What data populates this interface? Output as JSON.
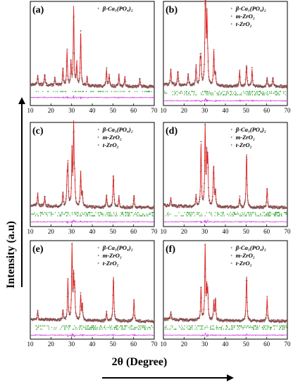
{
  "colors": {
    "observed": "#7a4a4a",
    "calculated": "#e02020",
    "bragg": "#2fa02f",
    "difference": "#d040e0",
    "frame": "#000000"
  },
  "figure": {
    "y_axis_title": "Intensity (a.u)",
    "x_axis_title": "2θ (Degree)"
  },
  "chart_data": [
    {
      "type": "line",
      "panel": "(a)",
      "xlim": [
        10,
        70
      ],
      "xticks": [
        10,
        20,
        30,
        40,
        50,
        60,
        70
      ],
      "legend": [
        "β-Ca₃(PO₄)₂"
      ],
      "series": [
        {
          "name": "β-Ca₃(PO₄)₂",
          "peaks": [
            [
              13.6,
              0.12
            ],
            [
              17.0,
              0.14
            ],
            [
              21.9,
              0.1
            ],
            [
              25.8,
              0.22
            ],
            [
              27.8,
              0.45
            ],
            [
              29.7,
              0.3
            ],
            [
              31.0,
              1.0
            ],
            [
              32.5,
              0.28
            ],
            [
              34.4,
              0.7
            ],
            [
              37.5,
              0.12
            ],
            [
              46.9,
              0.22
            ],
            [
              48.2,
              0.14
            ],
            [
              52.9,
              0.16
            ],
            [
              55.8,
              0.12
            ],
            [
              63.0,
              0.1
            ]
          ]
        }
      ]
    },
    {
      "type": "line",
      "panel": "(b)",
      "xlim": [
        10,
        70
      ],
      "xticks": [
        10,
        20,
        30,
        40,
        50,
        60,
        70
      ],
      "legend": [
        "β-Ca₃(PO₄)₂",
        "m-ZrO₂",
        "t-ZrO₂"
      ],
      "series": [
        {
          "name": "β-Ca₃(PO₄)₂",
          "peaks": [
            [
              13.6,
              0.2
            ],
            [
              17.0,
              0.18
            ],
            [
              22.0,
              0.15
            ],
            [
              25.8,
              0.25
            ],
            [
              27.8,
              0.3
            ],
            [
              30.4,
              1.0
            ],
            [
              31.1,
              0.8
            ],
            [
              34.4,
              0.45
            ],
            [
              46.9,
              0.2
            ],
            [
              52.9,
              0.22
            ],
            [
              63.0,
              0.12
            ]
          ]
        },
        {
          "name": "m-ZrO₂",
          "peaks": [
            [
              28.2,
              0.3
            ],
            [
              31.5,
              0.22
            ],
            [
              50.1,
              0.14
            ]
          ]
        },
        {
          "name": "t-ZrO₂",
          "peaks": [
            [
              30.2,
              0.5
            ],
            [
              35.2,
              0.16
            ],
            [
              50.3,
              0.18
            ],
            [
              60.2,
              0.12
            ]
          ]
        }
      ]
    },
    {
      "type": "line",
      "panel": "(c)",
      "xlim": [
        10,
        70
      ],
      "xticks": [
        10,
        20,
        30,
        40,
        50,
        60,
        70
      ],
      "legend": [
        "β-Ca₃(PO₄)₂",
        "m-ZrO₂",
        "t-ZrO₂"
      ],
      "series": [
        {
          "name": "β-Ca₃(PO₄)₂",
          "peaks": [
            [
              13.6,
              0.16
            ],
            [
              17.0,
              0.12
            ],
            [
              25.8,
              0.18
            ],
            [
              27.8,
              0.3
            ],
            [
              31.0,
              1.0
            ],
            [
              34.4,
              0.45
            ],
            [
              46.9,
              0.16
            ],
            [
              52.9,
              0.14
            ]
          ]
        },
        {
          "name": "m-ZrO₂",
          "peaks": [
            [
              28.2,
              0.5
            ],
            [
              31.5,
              0.3
            ],
            [
              50.1,
              0.18
            ]
          ]
        },
        {
          "name": "t-ZrO₂",
          "peaks": [
            [
              30.2,
              0.7
            ],
            [
              35.2,
              0.18
            ],
            [
              50.3,
              0.3
            ],
            [
              60.2,
              0.16
            ]
          ]
        }
      ]
    },
    {
      "type": "line",
      "panel": "(d)",
      "xlim": [
        10,
        70
      ],
      "xticks": [
        10,
        20,
        30,
        40,
        50,
        60,
        70
      ],
      "legend": [
        "β-Ca₃(PO₄)₂",
        "m-ZrO₂",
        "t-ZrO₂"
      ],
      "series": [
        {
          "name": "β-Ca₃(PO₄)₂",
          "peaks": [
            [
              13.6,
              0.1
            ],
            [
              25.8,
              0.14
            ],
            [
              31.0,
              0.6
            ],
            [
              34.4,
              0.35
            ],
            [
              46.9,
              0.12
            ]
          ]
        },
        {
          "name": "m-ZrO₂",
          "peaks": [
            [
              28.2,
              0.8
            ],
            [
              31.5,
              0.55
            ],
            [
              34.2,
              0.25
            ],
            [
              50.1,
              0.22
            ]
          ]
        },
        {
          "name": "t-ZrO₂",
          "peaks": [
            [
              30.2,
              1.0
            ],
            [
              35.2,
              0.2
            ],
            [
              50.3,
              0.55
            ],
            [
              60.2,
              0.25
            ]
          ]
        }
      ]
    },
    {
      "type": "line",
      "panel": "(e)",
      "xlim": [
        10,
        70
      ],
      "xticks": [
        10,
        20,
        30,
        40,
        50,
        60,
        70
      ],
      "legend": [
        "β-Ca₃(PO₄)₂",
        "m-ZrO₂",
        "t-ZrO₂"
      ],
      "series": [
        {
          "name": "β-Ca₃(PO₄)₂",
          "peaks": [
            [
              13.6,
              0.12
            ],
            [
              25.8,
              0.14
            ],
            [
              31.0,
              0.55
            ],
            [
              34.4,
              0.35
            ],
            [
              46.9,
              0.12
            ]
          ]
        },
        {
          "name": "m-ZrO₂",
          "peaks": [
            [
              28.2,
              0.55
            ],
            [
              31.5,
              0.4
            ],
            [
              50.1,
              0.2
            ]
          ]
        },
        {
          "name": "t-ZrO₂",
          "peaks": [
            [
              30.2,
              1.0
            ],
            [
              35.2,
              0.22
            ],
            [
              50.3,
              0.48
            ],
            [
              60.2,
              0.3
            ]
          ]
        }
      ]
    },
    {
      "type": "line",
      "panel": "(f)",
      "xlim": [
        10,
        70
      ],
      "xticks": [
        10,
        20,
        30,
        40,
        50,
        60,
        70
      ],
      "legend": [
        "β-Ca₃(PO₄)₂",
        "m-ZrO₂",
        "t-ZrO₂"
      ],
      "series": [
        {
          "name": "β-Ca₃(PO₄)₂",
          "peaks": [
            [
              13.6,
              0.1
            ],
            [
              31.0,
              0.4
            ],
            [
              34.4,
              0.25
            ]
          ]
        },
        {
          "name": "m-ZrO₂",
          "peaks": [
            [
              28.2,
              0.45
            ],
            [
              31.5,
              0.35
            ],
            [
              50.1,
              0.18
            ]
          ]
        },
        {
          "name": "t-ZrO₂",
          "peaks": [
            [
              30.2,
              1.0
            ],
            [
              35.2,
              0.3
            ],
            [
              50.3,
              0.5
            ],
            [
              60.2,
              0.32
            ]
          ]
        }
      ]
    }
  ]
}
